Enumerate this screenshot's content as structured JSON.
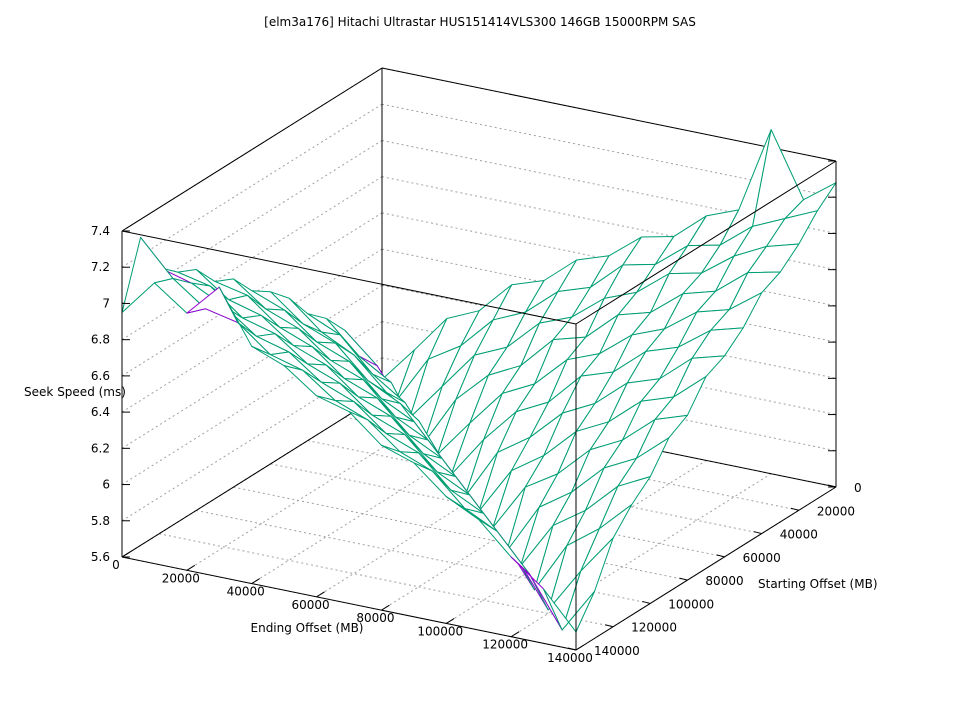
{
  "chart_data": {
    "type": "surface",
    "title": "[elm3a176] Hitachi Ultrastar HUS151414VLS300 146GB 15000RPM SAS",
    "xlabel": "Ending Offset (MB)",
    "ylabel": "Starting Offset (MB)",
    "zlabel": "Seek Speed (ms)",
    "xlim": [
      0,
      140000
    ],
    "ylim": [
      0,
      140000
    ],
    "zlim": [
      5.6,
      7.4
    ],
    "x_ticks": [
      "0",
      "20000",
      "40000",
      "60000",
      "80000",
      "100000",
      "120000",
      "140000"
    ],
    "y_ticks": [
      "0",
      "20000",
      "40000",
      "60000",
      "80000",
      "100000",
      "120000",
      "140000"
    ],
    "z_ticks": [
      "5.6",
      "5.8",
      "6",
      "6.2",
      "6.4",
      "6.6",
      "6.8",
      "7",
      "7.2",
      "7.4"
    ],
    "grid": true,
    "colors": {
      "top": "#9400d3",
      "underside": "#009e73"
    },
    "x": [
      0,
      10000,
      20000,
      30000,
      40000,
      50000,
      60000,
      70000,
      80000,
      90000,
      100000,
      110000,
      120000,
      130000,
      140000
    ],
    "y": [
      0,
      10000,
      20000,
      30000,
      40000,
      50000,
      60000,
      70000,
      80000,
      90000,
      100000,
      110000,
      120000,
      130000,
      140000
    ],
    "z": [
      [
        5.68,
        5.88,
        6.09,
        6.17,
        6.35,
        6.41,
        6.56,
        6.62,
        6.76,
        6.8,
        6.95,
        7.02,
        7.5,
        7.15,
        7.28
      ],
      [
        5.87,
        5.66,
        5.93,
        6.04,
        6.22,
        6.3,
        6.45,
        6.51,
        6.67,
        6.71,
        6.85,
        6.89,
        7.03,
        7.11,
        7.19
      ],
      [
        6.08,
        5.92,
        5.67,
        5.88,
        6.09,
        6.17,
        6.34,
        6.41,
        6.55,
        6.62,
        6.76,
        6.8,
        6.93,
        7.02,
        7.07
      ],
      [
        6.21,
        6.04,
        5.93,
        5.63,
        5.91,
        6.08,
        6.17,
        6.35,
        6.4,
        6.56,
        6.61,
        6.75,
        6.8,
        6.94,
        6.98
      ],
      [
        6.3,
        6.22,
        6.04,
        5.92,
        5.67,
        5.88,
        6.08,
        6.17,
        6.34,
        6.41,
        6.55,
        6.62,
        6.75,
        6.8,
        6.93
      ],
      [
        6.45,
        6.3,
        6.21,
        6.04,
        5.92,
        5.66,
        5.89,
        6.08,
        6.17,
        6.35,
        6.41,
        6.56,
        6.62,
        6.75,
        6.8
      ],
      [
        6.55,
        6.41,
        6.34,
        6.17,
        6.08,
        5.88,
        5.64,
        5.92,
        6.04,
        6.21,
        6.3,
        6.45,
        6.51,
        6.66,
        6.71
      ],
      [
        6.62,
        6.55,
        6.41,
        6.34,
        6.17,
        6.08,
        5.88,
        5.66,
        5.92,
        6.04,
        6.21,
        6.3,
        6.45,
        6.51,
        6.66
      ],
      [
        6.75,
        6.62,
        6.55,
        6.41,
        6.34,
        6.17,
        6.08,
        5.88,
        5.67,
        5.93,
        6.04,
        6.21,
        6.3,
        6.45,
        6.51
      ],
      [
        6.8,
        6.76,
        6.62,
        6.55,
        6.41,
        6.34,
        6.17,
        6.08,
        5.88,
        5.64,
        5.92,
        6.04,
        6.21,
        6.3,
        6.45
      ],
      [
        6.93,
        6.8,
        6.75,
        6.62,
        6.55,
        6.41,
        6.34,
        6.17,
        6.08,
        5.88,
        5.66,
        5.92,
        6.04,
        6.21,
        6.3
      ],
      [
        6.98,
        6.94,
        6.8,
        6.75,
        6.62,
        6.55,
        6.41,
        6.34,
        6.17,
        6.08,
        5.88,
        5.63,
        5.91,
        6.04,
        6.21
      ],
      [
        7.07,
        7.02,
        6.93,
        6.8,
        6.75,
        6.62,
        6.55,
        6.41,
        6.34,
        6.17,
        6.08,
        5.88,
        5.62,
        5.87,
        6.09
      ],
      [
        7.3,
        7.11,
        6.98,
        6.94,
        6.8,
        6.75,
        6.62,
        6.55,
        6.41,
        6.34,
        6.17,
        6.08,
        5.88,
        5.61,
        5.86
      ],
      [
        6.95,
        7.15,
        7.02,
        7.2,
        6.91,
        6.84,
        6.71,
        6.66,
        6.51,
        6.45,
        6.3,
        6.21,
        6.04,
        5.9,
        5.7
      ]
    ]
  }
}
